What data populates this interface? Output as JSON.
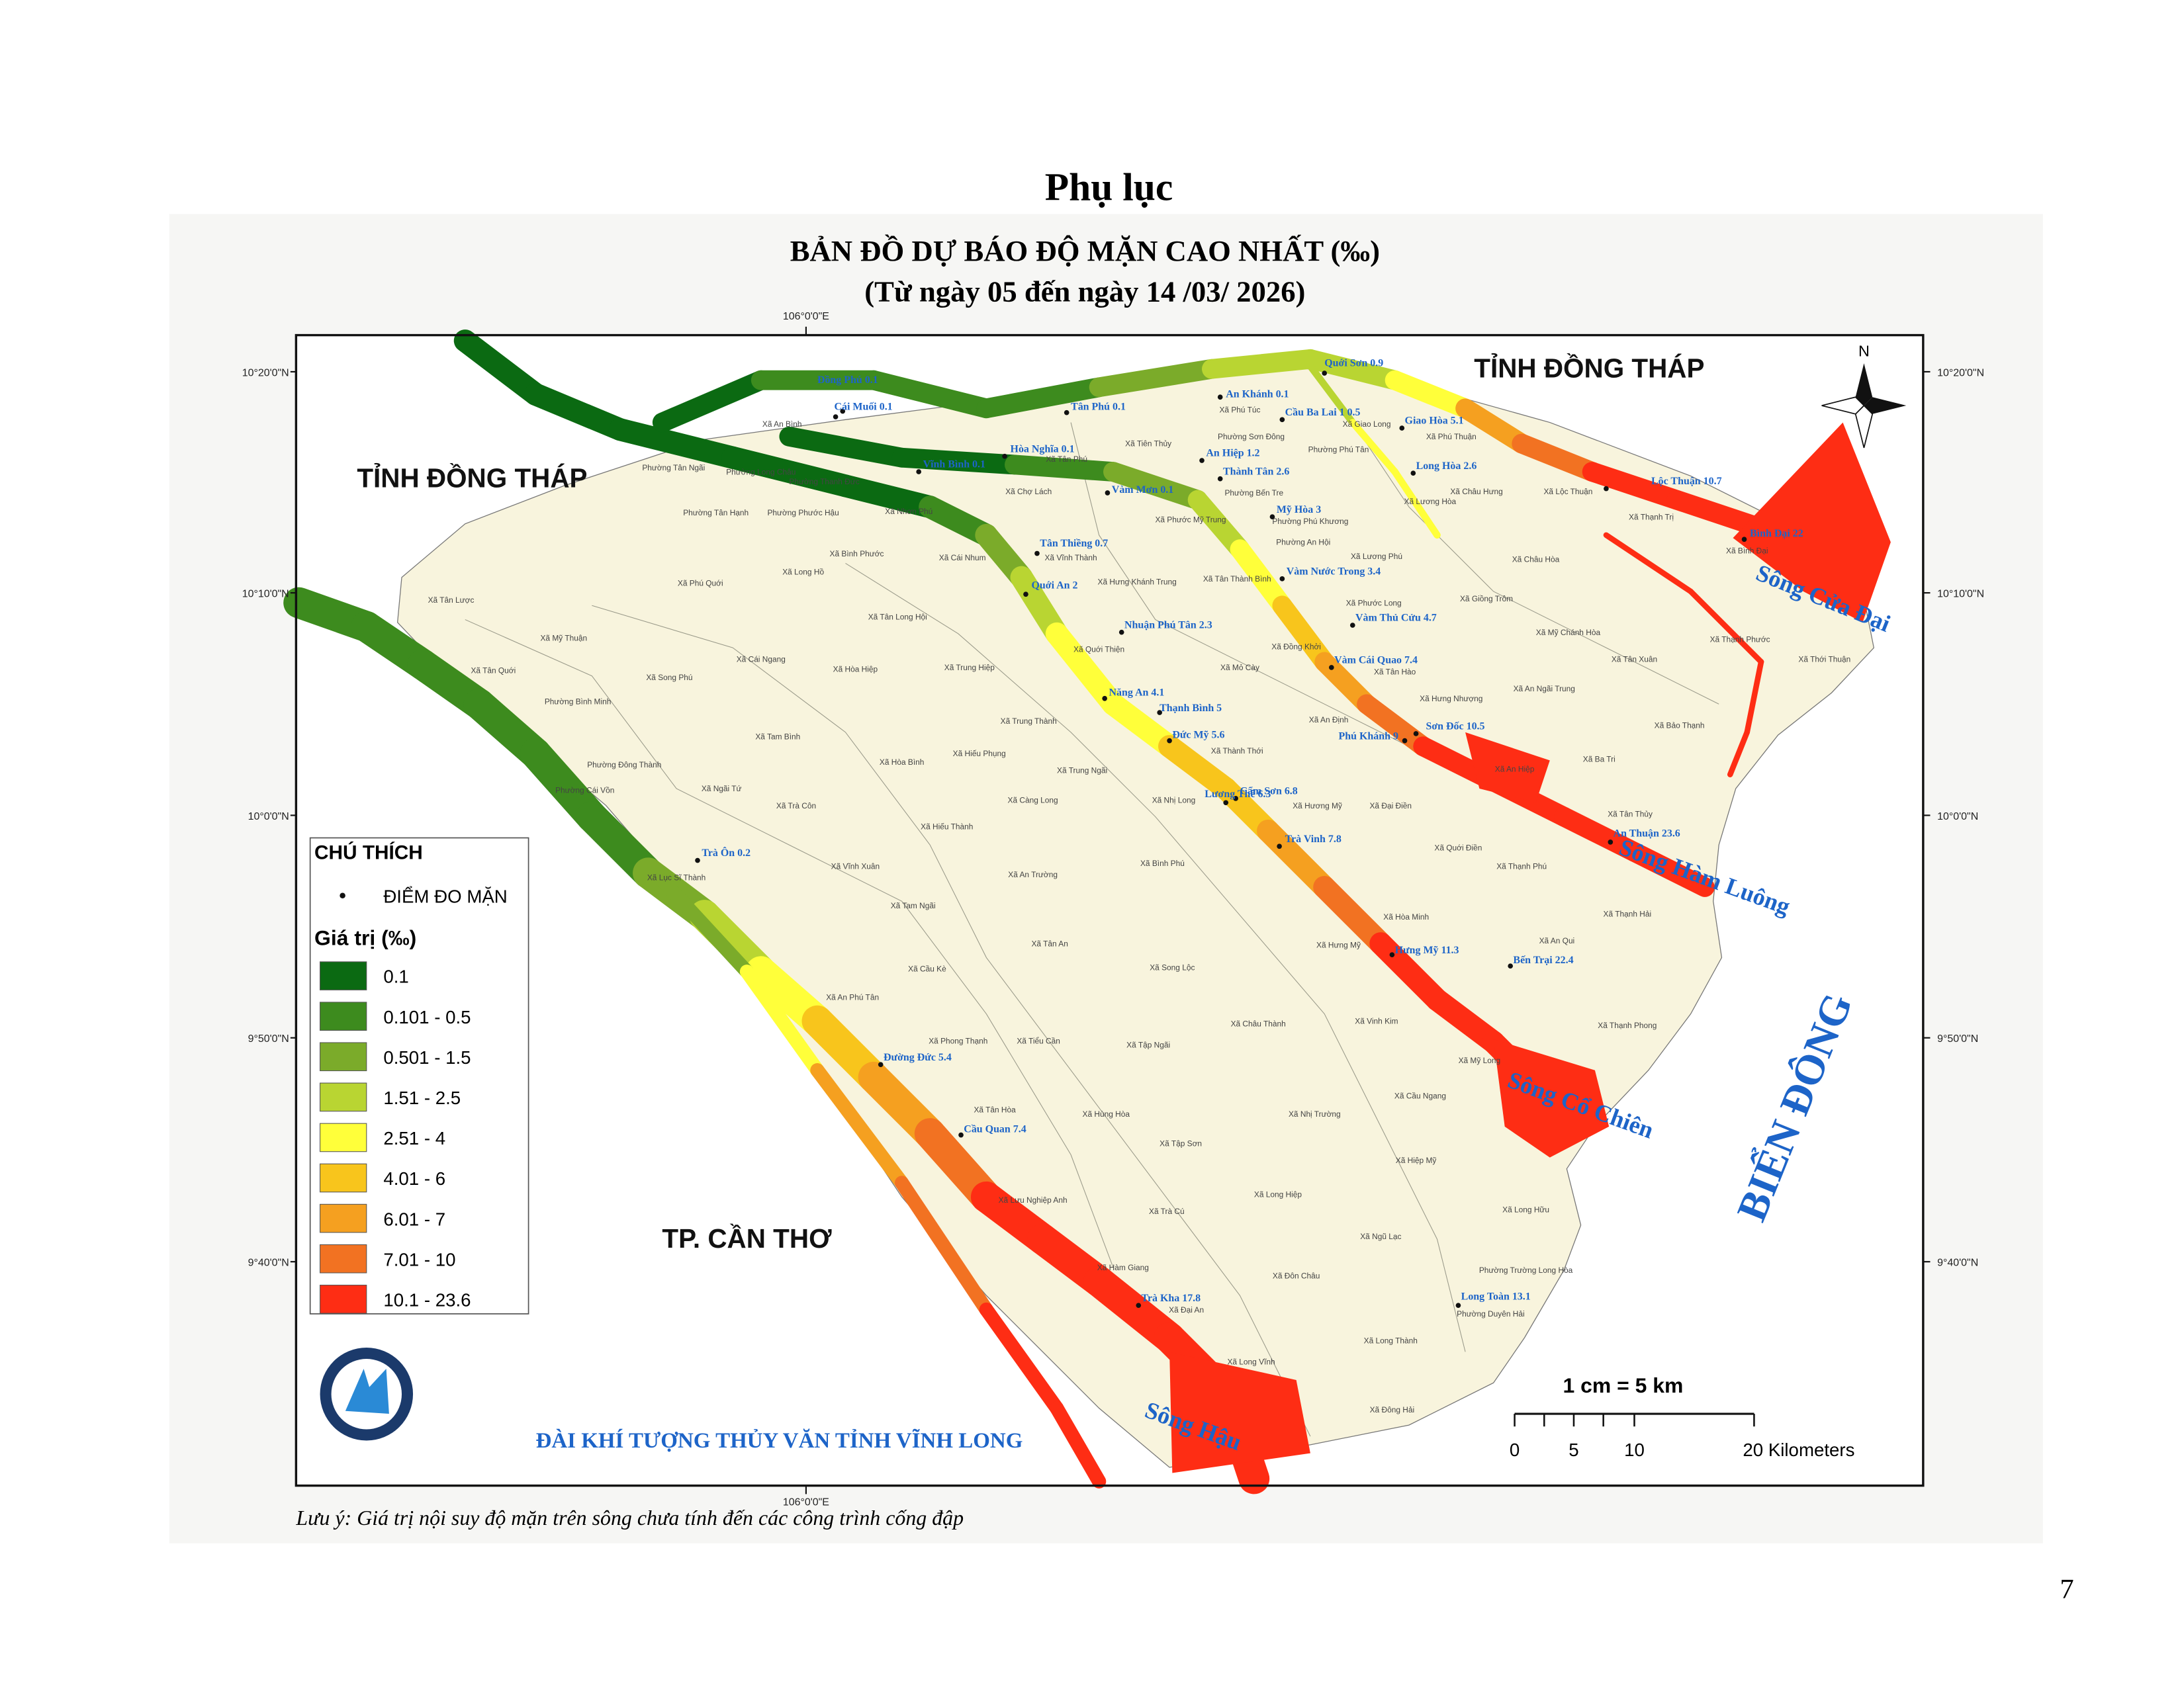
{
  "header": {
    "appendix": "Phụ lục",
    "title": "BẢN ĐỒ DỰ BÁO ĐỘ MẶN CAO NHẤT (‰)",
    "subtitle": "(Từ ngày 05 đến ngày 14 /03/ 2026)"
  },
  "map": {
    "longitude_label": "106°0'0\"E",
    "latitude_labels": [
      "10°20'0\"N",
      "10°10'0\"N",
      "10°0'0\"N",
      "9°50'0\"N",
      "9°40'0\"N"
    ],
    "regions": [
      "TỈNH ĐỒNG THÁP",
      "TỈNH ĐỒNG THÁP",
      "TP. CẦN THƠ"
    ],
    "sea": "BIỂN ĐÔNG",
    "north": "N",
    "rivers": [
      "Sông Cửa Đại",
      "Sông Hàm Luông",
      "Sông Cổ Chiên",
      "Sông Hậu"
    ],
    "stations": [
      "Đồng Phú 0.1",
      "Cái Muối 0.1",
      "Vĩnh Bình 0.1",
      "Hòa Nghĩa 0.1",
      "Tân Phú 0.1",
      "An Khánh 0.1",
      "Quới Sơn 0.9",
      "Cầu Ba Lai 1 0.5",
      "Giao Hòa 5.1",
      "An Hiệp 1.2",
      "Thành Tân 2.6",
      "Vàm Mơn 0.1",
      "Long Hòa 2.6",
      "Lộc Thuận 10.7",
      "Mỹ Hòa 3",
      "Bình Đại 22",
      "Tân Thiềng 0.7",
      "Vàm Nước Trong 3.4",
      "Quới An 2",
      "Vàm Thủ Cửu 4.7",
      "Nhuận Phú Tân 2.3",
      "Vàm Cái Quao 7.4",
      "Năng An 4.1",
      "Thạnh Bình 5",
      "Sơn Đốc 10.5",
      "Phú Khánh 9",
      "Đức Mỹ 5.6",
      "Cẩm Sơn 6.8",
      "Lương Thế 6.3",
      "Trà Vinh 7.8",
      "An Thuận 23.6",
      "Trà Ôn 0.2",
      "Hưng Mỹ 11.3",
      "Bến Trại 22.4",
      "Đường Đức 5.4",
      "Cầu Quan 7.4",
      "Trà Kha 17.8",
      "Long Toàn 13.1"
    ],
    "communes": [
      "Xã An Bình",
      "Phường Tân Ngãi",
      "Phường Long Châu",
      "Phường Thanh Đức",
      "Phường Tân Hạnh",
      "Phường Phước Hậu",
      "Xã Nhơn Phú",
      "Xã Bình Phước",
      "Xã Cái Nhum",
      "Xã Long Hồ",
      "Xã Phú Quới",
      "Xã Tân Lược",
      "Xã Mỹ Thuận",
      "Xã Tân Quới",
      "Xã Cái Ngang",
      "Xã Song Phú",
      "Phường Bình Minh",
      "Xã Hòa Hiệp",
      "Xã Tân Long Hội",
      "Xã Trung Hiệp",
      "Xã Tam Bình",
      "Phường Đông Thành",
      "Phường Cái Vồn",
      "Xã Ngãi Tứ",
      "Xã Trà Côn",
      "Xã Hòa Bình",
      "Xã Hiếu Phụng",
      "Xã Trung Thành",
      "Xã Trung Ngãi",
      "Xã Càng Long",
      "Xã Hiếu Thành",
      "Xã Vĩnh Xuân",
      "Xã Lục Sĩ Thành",
      "Xã Tam Ngãi",
      "Xã An Trường",
      "Xã Bình Phú",
      "Xã Nhị Long",
      "Xã Tân An",
      "Xã Cầu Kè",
      "Xã Song Lộc",
      "Xã An Phú Tân",
      "Xã Phong Thạnh",
      "Xã Tiểu Cần",
      "Xã Tập Ngãi",
      "Xã Châu Thành",
      "Xã Hùng Hòa",
      "Xã Tân Hòa",
      "Xã Tập Sơn",
      "Xã Lưu Nghiệp Anh",
      "Xã Trà Cú",
      "Xã Long Hiệp",
      "Xã Nhị Trường",
      "Xã Hàm Giang",
      "Xã Đôn Châu",
      "Xã Đại An",
      "Xã Long Vĩnh",
      "Xã Long Thành",
      "Xã Đông Hải",
      "Phường Trường Long Hòa",
      "Phường Duyên Hải",
      "Xã Ngũ Lạc",
      "Xã Long Hữu",
      "Xã Hiệp Mỹ",
      "Xã Cầu Ngang",
      "Xã Mỹ Long",
      "Xã Vinh Kim",
      "Xã Hưng Mỹ",
      "Xã Hòa Minh",
      "Xã Thạnh Phong",
      "Xã An Qui",
      "Xã Thạnh Hải",
      "Xã Thạnh Phú",
      "Xã Tân Thủy",
      "Xã Quới Điền",
      "Xã Đại Điền",
      "Xã Hương Mỹ",
      "Xã An Hiệp",
      "Xã Ba Tri",
      "Xã Bảo Thạnh",
      "Xã An Ngãi Trung",
      "Xã Hưng Nhượng",
      "Xã An Định",
      "Xã Thành Thới",
      "Xã Mỏ Cày",
      "Xã Đồng Khởi",
      "Xã Tân Hào",
      "Xã Phước Long",
      "Xã Giồng Trôm",
      "Xã Mỹ Chánh Hòa",
      "Xã Tân Xuân",
      "Xã Thạnh Phước",
      "Xã Thới Thuận",
      "Xã Châu Hòa",
      "Xã Lương Phú",
      "Phường An Hội",
      "Xã Lộc Thuận",
      "Xã Thạnh Trị",
      "Xã Bình Đại",
      "Xã Châu Hưng",
      "Xã Lương Hòa",
      "Phường Phú Khương",
      "Phường Bến Tre",
      "Phường Phú Tân",
      "Phường Sơn Đông",
      "Xã Phú Túc",
      "Xã Giao Long",
      "Xã Phú Thuận",
      "Xã Tiên Thủy",
      "Xã Tân Phú",
      "Xã Chợ Lách",
      "Xã Phước Mỹ Trung",
      "Xã Vĩnh Thành",
      "Xã Hưng Khánh Trung",
      "Xã Tân Thành Bình",
      "Xã Quới Thiện"
    ]
  },
  "legend": {
    "title": "CHÚ THÍCH",
    "point_label": "ĐIỂM ĐO MẶN",
    "value_title": "Giá trị (‰)",
    "classes": [
      {
        "label": "0.1",
        "color": "#0b6a12"
      },
      {
        "label": "0.101 - 0.5",
        "color": "#3d8b1e"
      },
      {
        "label": "0.501 - 1.5",
        "color": "#7bab2a"
      },
      {
        "label": "1.51 - 2.5",
        "color": "#b9d532"
      },
      {
        "label": "2.51 - 4",
        "color": "#ffff3a"
      },
      {
        "label": "4.01 - 6",
        "color": "#f8c51c"
      },
      {
        "label": "6.01 - 7",
        "color": "#f5a020"
      },
      {
        "label": "7.01 - 10",
        "color": "#f27222"
      },
      {
        "label": "10.1 - 23.6",
        "color": "#fe2d14"
      }
    ]
  },
  "scale_bar": {
    "ratio": "1 cm = 5 km",
    "labels": [
      "0",
      "5",
      "10",
      "20 Kilometers"
    ]
  },
  "organization": "ĐÀI KHÍ TƯỢNG THỦY VĂN TỈNH VĨNH LONG",
  "note": "Lưu ý: Giá trị nội suy độ mặn trên sông chưa tính đến các công trình cống đập",
  "page_number": "7"
}
